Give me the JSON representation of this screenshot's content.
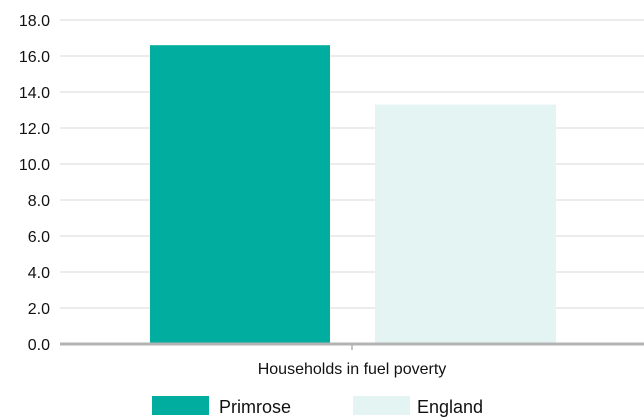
{
  "chart_data": {
    "type": "bar",
    "title": "",
    "xlabel": "",
    "ylabel": "",
    "categories": [
      "Households in fuel poverty"
    ],
    "series": [
      {
        "name": "Primrose",
        "values": [
          16.6
        ],
        "color": "#00ad9f"
      },
      {
        "name": "England",
        "values": [
          13.3
        ],
        "color": "#e3f4f3"
      }
    ],
    "ylim": [
      0,
      18
    ],
    "y_ticks": [
      "0.0",
      "2.0",
      "4.0",
      "6.0",
      "8.0",
      "10.0",
      "12.0",
      "14.0",
      "16.0",
      "18.0"
    ],
    "grid": true,
    "legend_position": "bottom",
    "grid_color": "#e6e6e6",
    "axis_color": "#b3b3b3"
  }
}
